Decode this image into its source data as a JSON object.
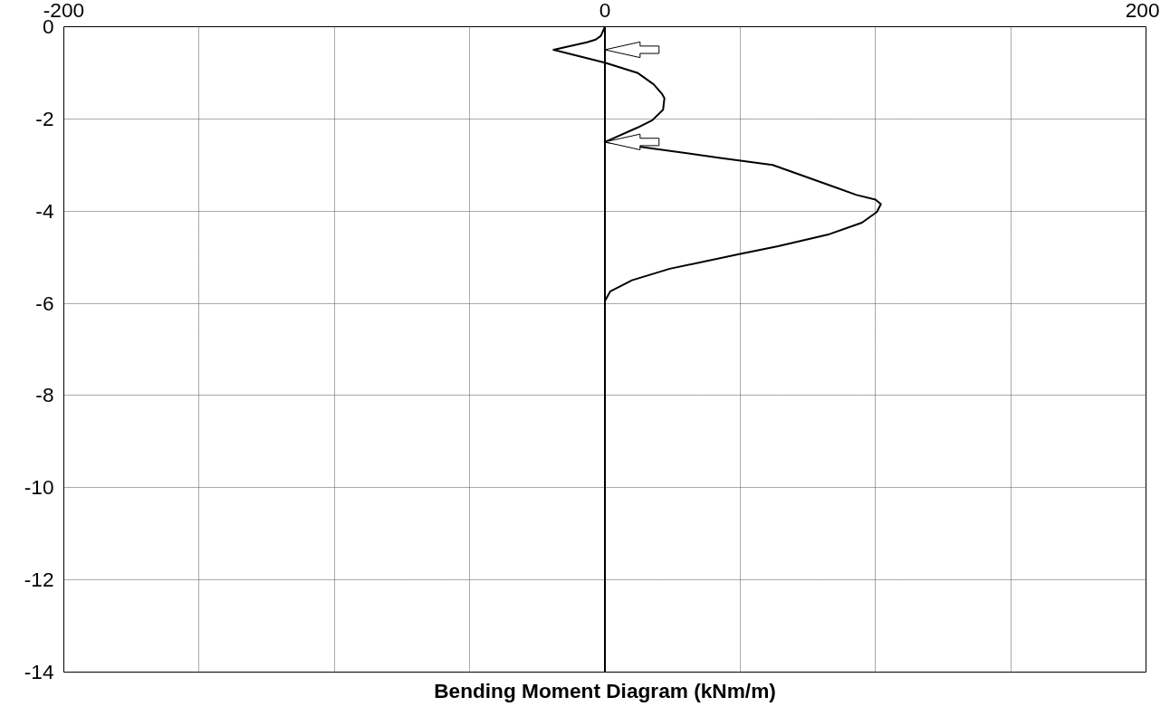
{
  "chart_data": {
    "type": "line",
    "xlabel": "Bending Moment Diagram (kNm/m)",
    "xlim": [
      -200,
      200
    ],
    "ylim": [
      -14,
      0
    ],
    "xticks": [
      -200,
      {
        "value": -150,
        "label": null
      },
      {
        "value": -100,
        "label": null
      },
      {
        "value": -50,
        "label": null
      },
      0,
      {
        "value": 50,
        "label": null
      },
      {
        "value": 100,
        "label": null
      },
      {
        "value": 150,
        "label": null
      },
      200
    ],
    "yticks": [
      -14,
      -12,
      -10,
      -8,
      -6,
      -4,
      -2,
      0
    ],
    "grid": true,
    "marker": "none",
    "line_style": "solid",
    "ref_lines": [
      {
        "axis": "x",
        "value": 0,
        "color": "#000000",
        "line_style": "solid"
      }
    ],
    "series": [
      {
        "color": "#000000",
        "x": [
          0,
          -1.5,
          -3.4,
          -6.7,
          -19,
          0,
          12,
          18,
          21,
          22,
          21.5,
          17.5,
          12,
          0,
          15,
          42,
          62,
          85,
          93,
          100,
          102,
          100.5,
          95,
          83,
          64,
          50,
          24,
          10,
          2,
          0,
          0,
          0,
          0,
          0
        ],
        "values": [
          0,
          -0.2,
          -0.28,
          -0.34,
          -0.5,
          -0.78,
          -1.0,
          -1.25,
          -1.45,
          -1.55,
          -1.8,
          -2.03,
          -2.19,
          -2.5,
          -2.62,
          -2.84,
          -3.0,
          -3.48,
          -3.65,
          -3.75,
          -3.85,
          -4.02,
          -4.25,
          -4.5,
          -4.76,
          -4.93,
          -5.25,
          -5.5,
          -5.74,
          -5.95,
          -8,
          -10,
          -12,
          -14
        ]
      }
    ]
  }
}
